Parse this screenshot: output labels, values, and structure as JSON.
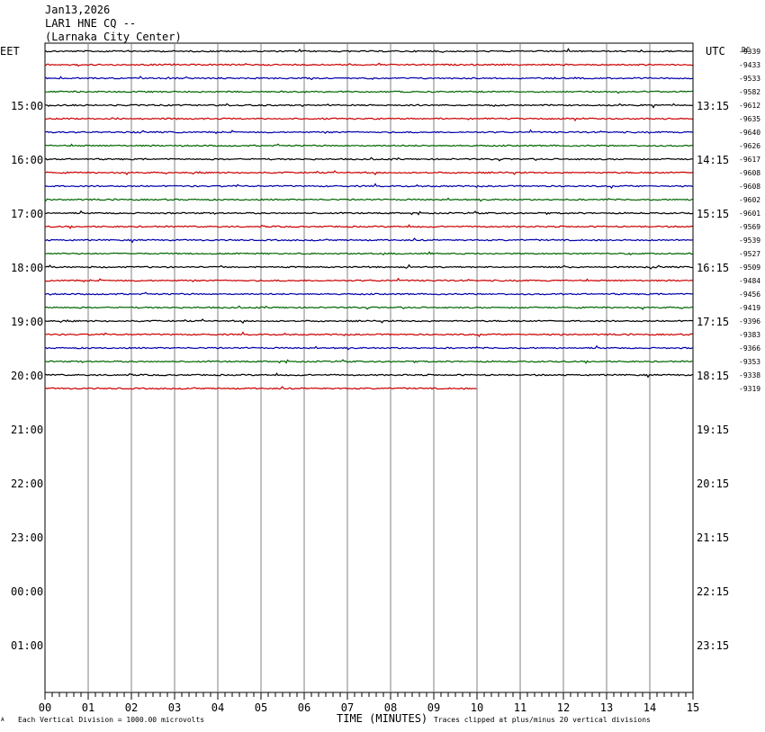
{
  "header": {
    "date": "Jan13,2026",
    "station": "LAR1 HNE CQ --",
    "location": "(Larnaka City Center)"
  },
  "footer": {
    "scale_note": "Each Vertical Division = 1000.00 microvolts",
    "axis_title": "TIME (MINUTES)",
    "clip_note": "Traces clipped at plus/minus 20 vertical divisions",
    "corner_mark": "A"
  },
  "chart_data": {
    "type": "line",
    "title": "LAR1 HNE CQ --",
    "left_axis_label": "EET",
    "right_axis_label": "UTC",
    "dc_label": "DC",
    "x_tick_labels": [
      "00",
      "01",
      "02",
      "03",
      "04",
      "05",
      "06",
      "07",
      "08",
      "09",
      "10",
      "11",
      "12",
      "13",
      "14",
      "15"
    ],
    "xlim": [
      0,
      15
    ],
    "xlabel": "TIME (MINUTES)",
    "left_hour_labels": [
      "15:00",
      "16:00",
      "17:00",
      "18:00",
      "19:00",
      "20:00",
      "21:00",
      "22:00",
      "23:00",
      "00:00",
      "01:00"
    ],
    "right_hour_labels": [
      "13:15",
      "14:15",
      "15:15",
      "16:15",
      "17:15",
      "18:15",
      "19:15",
      "20:15",
      "21:15",
      "22:15",
      "23:15"
    ],
    "trace_colors": [
      "#000000",
      "#cc0000",
      "#0000aa",
      "#006600"
    ],
    "traces": [
      {
        "row": 0,
        "dc": "-9339",
        "end_minute": 15
      },
      {
        "row": 1,
        "dc": "-9433",
        "end_minute": 15
      },
      {
        "row": 2,
        "dc": "-9533",
        "end_minute": 15
      },
      {
        "row": 3,
        "dc": "-9582",
        "end_minute": 15
      },
      {
        "row": 4,
        "dc": "-9612",
        "end_minute": 15
      },
      {
        "row": 5,
        "dc": "-9635",
        "end_minute": 15
      },
      {
        "row": 6,
        "dc": "-9640",
        "end_minute": 15
      },
      {
        "row": 7,
        "dc": "-9626",
        "end_minute": 15
      },
      {
        "row": 8,
        "dc": "-9617",
        "end_minute": 15
      },
      {
        "row": 9,
        "dc": "-9608",
        "end_minute": 15
      },
      {
        "row": 10,
        "dc": "-9608",
        "end_minute": 15
      },
      {
        "row": 11,
        "dc": "-9602",
        "end_minute": 15
      },
      {
        "row": 12,
        "dc": "-9601",
        "end_minute": 15
      },
      {
        "row": 13,
        "dc": "-9569",
        "end_minute": 15
      },
      {
        "row": 14,
        "dc": "-9539",
        "end_minute": 15
      },
      {
        "row": 15,
        "dc": "-9527",
        "end_minute": 15
      },
      {
        "row": 16,
        "dc": "-9509",
        "end_minute": 15
      },
      {
        "row": 17,
        "dc": "-9484",
        "end_minute": 15
      },
      {
        "row": 18,
        "dc": "-9456",
        "end_minute": 15
      },
      {
        "row": 19,
        "dc": "-9419",
        "end_minute": 15
      },
      {
        "row": 20,
        "dc": "-9396",
        "end_minute": 15
      },
      {
        "row": 21,
        "dc": "-9383",
        "end_minute": 15
      },
      {
        "row": 22,
        "dc": "-9366",
        "end_minute": 15
      },
      {
        "row": 23,
        "dc": "-9353",
        "end_minute": 15
      },
      {
        "row": 24,
        "dc": "-9338",
        "end_minute": 15
      },
      {
        "row": 25,
        "dc": "-9319",
        "end_minute": 10
      }
    ],
    "grid": true
  }
}
